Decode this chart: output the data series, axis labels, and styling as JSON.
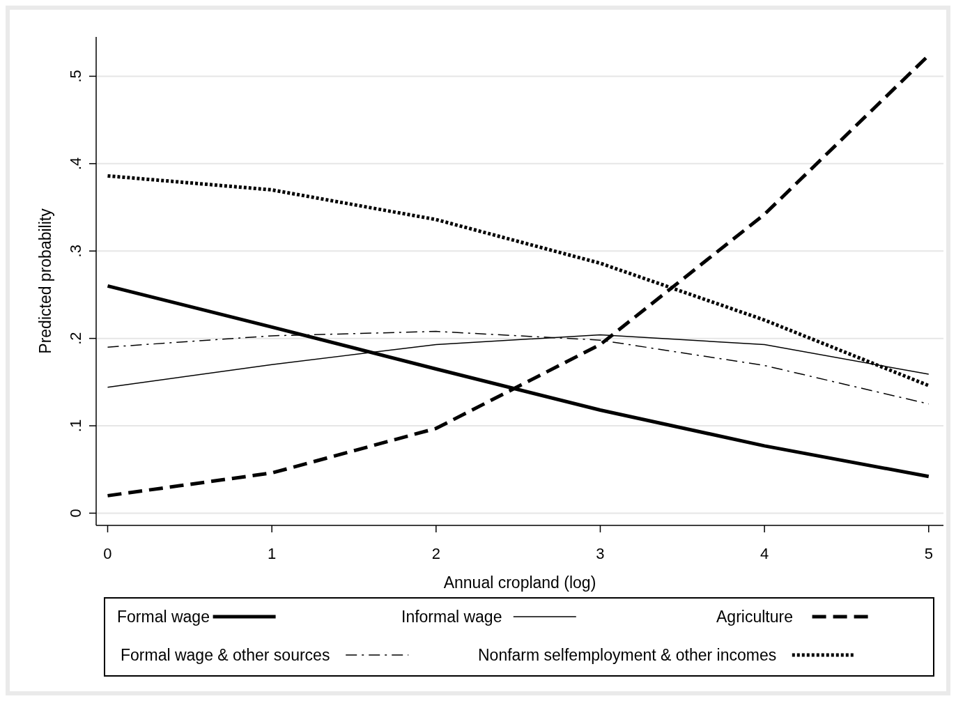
{
  "chart_data": {
    "type": "line",
    "xlabel": "Annual cropland (log)",
    "ylabel": "Predicted probability",
    "x": [
      0,
      1,
      2,
      3,
      4,
      5
    ],
    "xlim": [
      -0.07,
      5.09
    ],
    "xticks": [
      0,
      1,
      2,
      3,
      4,
      5
    ],
    "ylim": [
      -0.014,
      0.545
    ],
    "yticks": [
      {
        "value": 0,
        "label": "0"
      },
      {
        "value": 0.1,
        "label": ".1"
      },
      {
        "value": 0.2,
        "label": ".2"
      },
      {
        "value": 0.3,
        "label": ".3"
      },
      {
        "value": 0.4,
        "label": ".4"
      },
      {
        "value": 0.5,
        "label": ".5"
      }
    ],
    "grid": "y",
    "legend": "bottom",
    "marker": "none",
    "series": [
      {
        "name": "Formal wage",
        "color": "#000000",
        "line_style": "solid",
        "values": [
          0.26,
          0.213,
          0.165,
          0.118,
          0.077,
          0.042
        ]
      },
      {
        "name": "Informal wage",
        "color": "#000000",
        "line_style": "solid",
        "values": [
          0.144,
          0.17,
          0.193,
          0.204,
          0.193,
          0.159
        ]
      },
      {
        "name": "Agriculture",
        "color": "#000000",
        "line_style": "dashed",
        "values": [
          0.02,
          0.046,
          0.097,
          0.193,
          0.342,
          0.524
        ]
      },
      {
        "name": "Formal wage & other sources",
        "color": "#000000",
        "line_style": "dashdot",
        "values": [
          0.19,
          0.203,
          0.208,
          0.198,
          0.169,
          0.125
        ]
      },
      {
        "name": "Nonfarm selfemployment & other incomes",
        "color": "#000000",
        "line_style": "dotted",
        "values": [
          0.386,
          0.37,
          0.336,
          0.286,
          0.221,
          0.146
        ]
      }
    ]
  }
}
